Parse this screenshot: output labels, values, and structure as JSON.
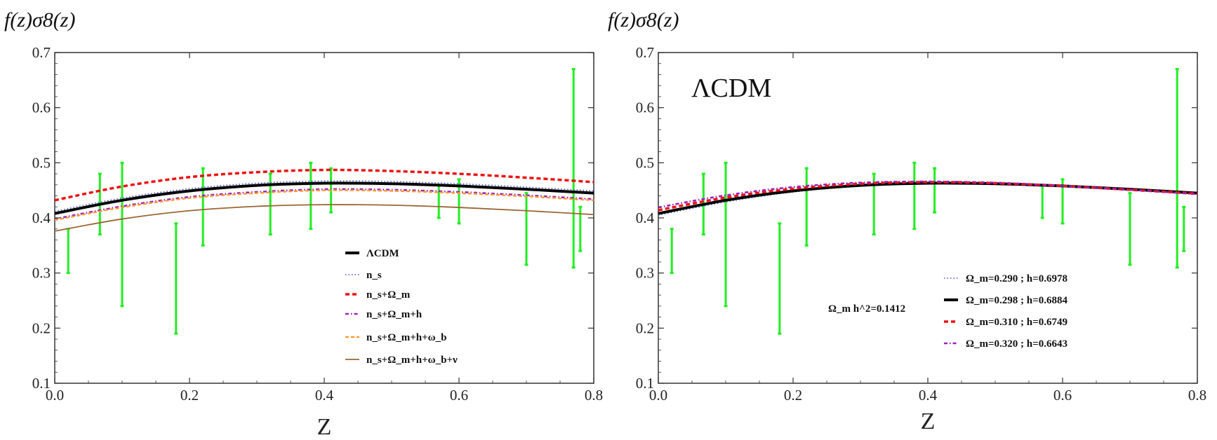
{
  "colors": {
    "errorbar": "#22ee22",
    "lcdm": "#000000",
    "ns": "#4455cc",
    "ns_om": "#ee1111",
    "ns_om_h": "#9922bb",
    "ns_om_h_wb": "#ff9933",
    "ns_om_h_wb_nu": "#996633",
    "frame": "#333333"
  },
  "chart_data": [
    {
      "type": "line",
      "title": "",
      "ylabel": "f(z)σ8(z)",
      "xlabel": "Z",
      "xlim": [
        0,
        0.8
      ],
      "ylim": [
        0.1,
        0.7
      ],
      "xticks": [
        "0.0",
        "0.2",
        "0.4",
        "0.6",
        "0.8"
      ],
      "yticks": [
        "0.1",
        "0.2",
        "0.3",
        "0.4",
        "0.5",
        "0.6",
        "0.7"
      ],
      "legend_position": "lower-center",
      "series": [
        {
          "name": "ΛCDM",
          "legend": "ΛCDM",
          "style": "solid-thick",
          "color_key": "lcdm",
          "x": [
            0,
            0.1,
            0.2,
            0.3,
            0.4,
            0.5,
            0.6,
            0.7,
            0.8
          ],
          "values": [
            0.408,
            0.432,
            0.449,
            0.459,
            0.463,
            0.462,
            0.458,
            0.452,
            0.445
          ]
        },
        {
          "name": "n_s",
          "legend": "n_s",
          "style": "dotted",
          "color_key": "ns",
          "x": [
            0,
            0.1,
            0.2,
            0.3,
            0.4,
            0.5,
            0.6,
            0.7,
            0.8
          ],
          "values": [
            0.412,
            0.436,
            0.453,
            0.463,
            0.467,
            0.466,
            0.462,
            0.456,
            0.449
          ]
        },
        {
          "name": "n_s+Ω_m",
          "legend": "n_s+Ω_m",
          "style": "dashed-thick",
          "color_key": "ns_om",
          "x": [
            0,
            0.1,
            0.2,
            0.3,
            0.4,
            0.5,
            0.6,
            0.7,
            0.8
          ],
          "values": [
            0.432,
            0.457,
            0.474,
            0.483,
            0.487,
            0.485,
            0.48,
            0.473,
            0.465
          ]
        },
        {
          "name": "n_s+Ω_m+h",
          "legend": "n_s+Ω_m+h",
          "style": "dashdot",
          "color_key": "ns_om_h",
          "x": [
            0,
            0.1,
            0.2,
            0.3,
            0.4,
            0.5,
            0.6,
            0.7,
            0.8
          ],
          "values": [
            0.398,
            0.421,
            0.438,
            0.447,
            0.452,
            0.451,
            0.447,
            0.441,
            0.434
          ]
        },
        {
          "name": "n_s+Ω_m+h+ω_b",
          "legend": "n_s+Ω_m+h+ω_b",
          "style": "dashed",
          "color_key": "ns_om_h_wb",
          "x": [
            0,
            0.1,
            0.2,
            0.3,
            0.4,
            0.5,
            0.6,
            0.7,
            0.8
          ],
          "values": [
            0.396,
            0.419,
            0.436,
            0.445,
            0.45,
            0.449,
            0.445,
            0.439,
            0.432
          ]
        },
        {
          "name": "n_s+Ω_m+h+ω_b+ν",
          "legend": "n_s+Ω_m+h+ω_b+ν",
          "style": "solid-thin",
          "color_key": "ns_om_h_wb_nu",
          "x": [
            0,
            0.1,
            0.2,
            0.3,
            0.4,
            0.5,
            0.6,
            0.7,
            0.8
          ],
          "values": [
            0.376,
            0.398,
            0.413,
            0.421,
            0.424,
            0.423,
            0.419,
            0.413,
            0.406
          ]
        }
      ],
      "errorbars": {
        "z": [
          0.02,
          0.067,
          0.1,
          0.18,
          0.22,
          0.32,
          0.38,
          0.41,
          0.57,
          0.6,
          0.7,
          0.77,
          0.78
        ],
        "low": [
          0.3,
          0.37,
          0.24,
          0.19,
          0.35,
          0.37,
          0.38,
          0.41,
          0.4,
          0.39,
          0.315,
          0.31,
          0.34
        ],
        "high": [
          0.38,
          0.48,
          0.5,
          0.39,
          0.49,
          0.48,
          0.5,
          0.49,
          0.46,
          0.47,
          0.445,
          0.67,
          0.42
        ]
      }
    },
    {
      "type": "line",
      "title": "ΛCDM",
      "ylabel": "f(z)σ8(z)",
      "xlabel": "Z",
      "xlim": [
        0,
        0.8
      ],
      "ylim": [
        0.1,
        0.7
      ],
      "xticks": [
        "0.0",
        "0.2",
        "0.4",
        "0.6",
        "0.8"
      ],
      "yticks": [
        "0.1",
        "0.2",
        "0.3",
        "0.4",
        "0.5",
        "0.6",
        "0.7"
      ],
      "legend_position": "lower-right",
      "annotation": "Ω_m h^2=0.1412",
      "series": [
        {
          "name": "Ω_m=0.290 ; h=0.6978",
          "legend": "Ω_m=0.290 ; h=0.6978",
          "style": "dotted",
          "color_key": "ns",
          "x": [
            0,
            0.1,
            0.2,
            0.3,
            0.4,
            0.5,
            0.6,
            0.7,
            0.8
          ],
          "values": [
            0.405,
            0.429,
            0.447,
            0.458,
            0.462,
            0.462,
            0.459,
            0.452,
            0.445
          ]
        },
        {
          "name": "Ω_m=0.298 ; h=0.6884",
          "legend": "Ω_m=0.298 ; h=0.6884",
          "style": "solid-thick",
          "color_key": "lcdm",
          "x": [
            0,
            0.1,
            0.2,
            0.3,
            0.4,
            0.5,
            0.6,
            0.7,
            0.8
          ],
          "values": [
            0.408,
            0.432,
            0.449,
            0.459,
            0.463,
            0.462,
            0.458,
            0.452,
            0.445
          ]
        },
        {
          "name": "Ω_m=0.310 ; h=0.6749",
          "legend": "Ω_m=0.310 ; h=0.6749",
          "style": "dashed-thick",
          "color_key": "ns_om",
          "x": [
            0,
            0.1,
            0.2,
            0.3,
            0.4,
            0.5,
            0.6,
            0.7,
            0.8
          ],
          "values": [
            0.414,
            0.437,
            0.453,
            0.462,
            0.465,
            0.463,
            0.458,
            0.451,
            0.444
          ]
        },
        {
          "name": "Ω_m=0.320 ; h=0.6643",
          "legend": "Ω_m=0.320 ; h=0.6643",
          "style": "dashdot",
          "color_key": "ns_om_h",
          "x": [
            0,
            0.1,
            0.2,
            0.3,
            0.4,
            0.5,
            0.6,
            0.7,
            0.8
          ],
          "values": [
            0.419,
            0.441,
            0.456,
            0.464,
            0.466,
            0.464,
            0.458,
            0.451,
            0.443
          ]
        }
      ],
      "errorbars": {
        "z": [
          0.02,
          0.067,
          0.1,
          0.18,
          0.22,
          0.32,
          0.38,
          0.41,
          0.57,
          0.6,
          0.7,
          0.77,
          0.78
        ],
        "low": [
          0.3,
          0.37,
          0.24,
          0.19,
          0.35,
          0.37,
          0.38,
          0.41,
          0.4,
          0.39,
          0.315,
          0.31,
          0.34
        ],
        "high": [
          0.38,
          0.48,
          0.5,
          0.39,
          0.49,
          0.48,
          0.5,
          0.49,
          0.46,
          0.47,
          0.445,
          0.67,
          0.42
        ]
      }
    }
  ]
}
